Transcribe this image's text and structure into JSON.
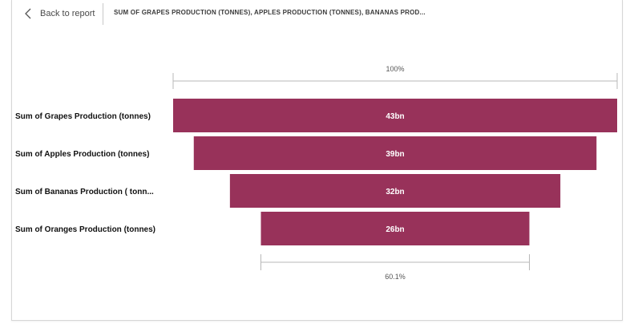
{
  "header": {
    "back_label": "Back to report",
    "visual_title": "SUM OF GRAPES PRODUCTION (TONNES), APPLES PRODUCTION (TONNES), BANANAS PROD..."
  },
  "icons": {
    "back": "chevron-left-icon"
  },
  "colors": {
    "bar": "#98325A",
    "bracket": "#b8b8b8"
  },
  "chart_data": {
    "type": "bar",
    "subtype": "funnel",
    "categories": [
      "Sum of Grapes Production (tonnes)",
      "Sum of Apples Production (tonnes)",
      "Sum of Bananas Production ( tonn...",
      "Sum of Oranges Production (tonnes)"
    ],
    "values": [
      43,
      39,
      32,
      26
    ],
    "value_unit": "bn",
    "data_labels": [
      "43bn",
      "39bn",
      "32bn",
      "26bn"
    ],
    "top_percent_label": "100%",
    "bottom_percent_label": "60.1%"
  }
}
